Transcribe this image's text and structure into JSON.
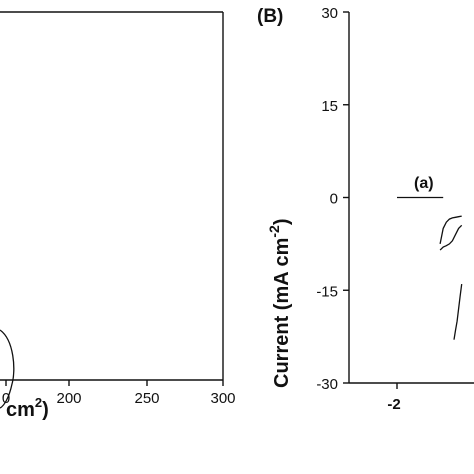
{
  "chart_data": [
    {
      "panel": "A",
      "type": "line",
      "x_ticks": [
        "0",
        "200",
        "250",
        "300"
      ],
      "xlabel_fragment": "cm",
      "xlabel_sup": "2",
      "xlabel_end": ")",
      "xlim": [
        0,
        300
      ],
      "series": []
    },
    {
      "panel": "B",
      "panel_label": "(B)",
      "type": "line",
      "ylabel": "Current (mA cm",
      "ylabel_sup": "-2",
      "ylabel_end": ")",
      "y_ticks": [
        30,
        15,
        0,
        -15,
        -30
      ],
      "y_tick_labels": [
        "30",
        "15",
        "0",
        "-15",
        "-30"
      ],
      "ylim": [
        -30,
        30
      ],
      "x_ticks": [
        "-2"
      ],
      "xlim": [
        -2,
        -1.5
      ],
      "annotation": "(a)",
      "series": [
        {
          "label": "(a)",
          "x": [
            -2.0,
            -1.9,
            -1.8,
            -1.7
          ],
          "y": [
            0,
            0,
            0,
            0
          ]
        },
        {
          "x": [
            -1.72,
            -1.7,
            -1.68,
            -1.66,
            -1.64,
            -1.62,
            -1.6,
            -1.58
          ],
          "y": [
            -7.5,
            -5,
            -4,
            -3.5,
            -3.3,
            -3.2,
            -3.1,
            -3.0
          ]
        },
        {
          "x": [
            -1.58,
            -1.6,
            -1.62,
            -1.64,
            -1.66,
            -1.68,
            -1.7,
            -1.72
          ],
          "y": [
            -4.5,
            -5,
            -6,
            -7,
            -7.5,
            -7.8,
            -8,
            -8.5
          ]
        },
        {
          "x": [
            -1.58,
            -1.59,
            -1.6,
            -1.61,
            -1.62,
            -1.63
          ],
          "y": [
            -14,
            -16,
            -18,
            -20,
            -21.5,
            -23
          ]
        }
      ]
    }
  ]
}
